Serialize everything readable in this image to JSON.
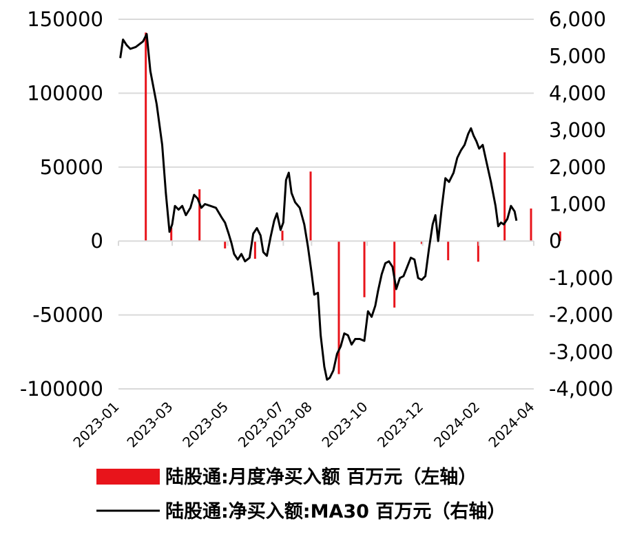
{
  "chart_data": {
    "type": "bar+line",
    "x_ticks": [
      "2023-01",
      "2023-03",
      "2023-05",
      "2023-07",
      "2023-08",
      "2023-10",
      "2023-12",
      "2024-02",
      "2024-04"
    ],
    "left_axis": {
      "ticks": [
        "150000",
        "100000",
        "50000",
        "0",
        "-50000",
        "-100000"
      ],
      "ylim": [
        -100000,
        150000
      ]
    },
    "right_axis": {
      "ticks": [
        "6,000",
        "5,000",
        "4,000",
        "3,000",
        "2,000",
        "1,000",
        "0",
        "-1,000",
        "-2,000",
        "-3,000",
        "-4,000"
      ],
      "ylim": [
        -4000,
        6000
      ]
    },
    "grid": true,
    "legend_position": "bottom",
    "colors": {
      "bars": "#e8141b",
      "line": "#000000",
      "grid": "#d9d9d9"
    },
    "series": [
      {
        "name": "陆股通:月度净买入额 百万元（左轴）",
        "axis": "left",
        "kind": "bar",
        "points": [
          {
            "x": "2023-01-31",
            "y": 141000
          },
          {
            "x": "2023-02-28",
            "y": 9000
          },
          {
            "x": "2023-03-31",
            "y": 35000
          },
          {
            "x": "2023-04-28",
            "y": -5000
          },
          {
            "x": "2023-05-31",
            "y": -12000
          },
          {
            "x": "2023-06-30",
            "y": 7000
          },
          {
            "x": "2023-07-31",
            "y": 47000
          },
          {
            "x": "2023-08-31",
            "y": -90000
          },
          {
            "x": "2023-09-28",
            "y": -38000
          },
          {
            "x": "2023-10-31",
            "y": -45000
          },
          {
            "x": "2023-11-30",
            "y": -2000
          },
          {
            "x": "2023-12-29",
            "y": -13000
          },
          {
            "x": "2024-01-31",
            "y": -14000
          },
          {
            "x": "2024-02-29",
            "y": 60000
          },
          {
            "x": "2024-03-29",
            "y": 22000
          },
          {
            "x": "2024-04-30",
            "y": 6500
          }
        ]
      },
      {
        "name": "陆股通:净买入额:MA30 百万元（右轴）",
        "axis": "right",
        "kind": "line",
        "points": [
          {
            "x": "2023-01-03",
            "y": 4950
          },
          {
            "x": "2023-01-06",
            "y": 5450
          },
          {
            "x": "2023-01-10",
            "y": 5300
          },
          {
            "x": "2023-01-14",
            "y": 5200
          },
          {
            "x": "2023-01-20",
            "y": 5250
          },
          {
            "x": "2023-01-28",
            "y": 5400
          },
          {
            "x": "2023-02-01",
            "y": 5600
          },
          {
            "x": "2023-02-05",
            "y": 4600
          },
          {
            "x": "2023-02-12",
            "y": 3700
          },
          {
            "x": "2023-02-18",
            "y": 2600
          },
          {
            "x": "2023-02-22",
            "y": 1300
          },
          {
            "x": "2023-02-26",
            "y": 250
          },
          {
            "x": "2023-03-01",
            "y": 450
          },
          {
            "x": "2023-03-04",
            "y": 950
          },
          {
            "x": "2023-03-08",
            "y": 850
          },
          {
            "x": "2023-03-12",
            "y": 950
          },
          {
            "x": "2023-03-16",
            "y": 700
          },
          {
            "x": "2023-03-21",
            "y": 900
          },
          {
            "x": "2023-03-25",
            "y": 1250
          },
          {
            "x": "2023-03-29",
            "y": 1150
          },
          {
            "x": "2023-04-02",
            "y": 900
          },
          {
            "x": "2023-04-06",
            "y": 1000
          },
          {
            "x": "2023-04-12",
            "y": 950
          },
          {
            "x": "2023-04-18",
            "y": 900
          },
          {
            "x": "2023-04-24",
            "y": 650
          },
          {
            "x": "2023-04-28",
            "y": 500
          },
          {
            "x": "2023-05-02",
            "y": 200
          },
          {
            "x": "2023-05-05",
            "y": -50
          },
          {
            "x": "2023-05-08",
            "y": -350
          },
          {
            "x": "2023-05-12",
            "y": -500
          },
          {
            "x": "2023-05-16",
            "y": -350
          },
          {
            "x": "2023-05-20",
            "y": -550
          },
          {
            "x": "2023-05-25",
            "y": -450
          },
          {
            "x": "2023-05-29",
            "y": 200
          },
          {
            "x": "2023-06-02",
            "y": 350
          },
          {
            "x": "2023-06-06",
            "y": 150
          },
          {
            "x": "2023-06-09",
            "y": -300
          },
          {
            "x": "2023-06-13",
            "y": -400
          },
          {
            "x": "2023-06-17",
            "y": 100
          },
          {
            "x": "2023-06-21",
            "y": 550
          },
          {
            "x": "2023-06-24",
            "y": 750
          },
          {
            "x": "2023-06-28",
            "y": 300
          },
          {
            "x": "2023-07-01",
            "y": 500
          },
          {
            "x": "2023-07-04",
            "y": 1650
          },
          {
            "x": "2023-07-07",
            "y": 1850
          },
          {
            "x": "2023-07-10",
            "y": 1300
          },
          {
            "x": "2023-07-14",
            "y": 1050
          },
          {
            "x": "2023-07-19",
            "y": 900
          },
          {
            "x": "2023-07-24",
            "y": 450
          },
          {
            "x": "2023-07-28",
            "y": -150
          },
          {
            "x": "2023-08-01",
            "y": -850
          },
          {
            "x": "2023-08-04",
            "y": -1450
          },
          {
            "x": "2023-08-08",
            "y": -1400
          },
          {
            "x": "2023-08-11",
            "y": -2550
          },
          {
            "x": "2023-08-15",
            "y": -3400
          },
          {
            "x": "2023-08-18",
            "y": -3750
          },
          {
            "x": "2023-08-21",
            "y": -3700
          },
          {
            "x": "2023-08-25",
            "y": -3500
          },
          {
            "x": "2023-08-29",
            "y": -3050
          },
          {
            "x": "2023-09-02",
            "y": -2850
          },
          {
            "x": "2023-09-06",
            "y": -2500
          },
          {
            "x": "2023-09-10",
            "y": -2550
          },
          {
            "x": "2023-09-14",
            "y": -2800
          },
          {
            "x": "2023-09-18",
            "y": -2650
          },
          {
            "x": "2023-09-23",
            "y": -2650
          },
          {
            "x": "2023-09-28",
            "y": -2700
          },
          {
            "x": "2023-10-02",
            "y": -1900
          },
          {
            "x": "2023-10-06",
            "y": -2050
          },
          {
            "x": "2023-10-10",
            "y": -1750
          },
          {
            "x": "2023-10-13",
            "y": -1350
          },
          {
            "x": "2023-10-17",
            "y": -900
          },
          {
            "x": "2023-10-21",
            "y": -600
          },
          {
            "x": "2023-10-25",
            "y": -550
          },
          {
            "x": "2023-10-29",
            "y": -700
          },
          {
            "x": "2023-11-02",
            "y": -1300
          },
          {
            "x": "2023-11-06",
            "y": -1000
          },
          {
            "x": "2023-11-10",
            "y": -950
          },
          {
            "x": "2023-11-14",
            "y": -700
          },
          {
            "x": "2023-11-18",
            "y": -450
          },
          {
            "x": "2023-11-22",
            "y": -500
          },
          {
            "x": "2023-11-26",
            "y": -1000
          },
          {
            "x": "2023-11-30",
            "y": -1050
          },
          {
            "x": "2023-12-04",
            "y": -950
          },
          {
            "x": "2023-12-08",
            "y": -200
          },
          {
            "x": "2023-12-12",
            "y": 450
          },
          {
            "x": "2023-12-15",
            "y": 700
          },
          {
            "x": "2023-12-18",
            "y": 0
          },
          {
            "x": "2023-12-22",
            "y": 900
          },
          {
            "x": "2023-12-26",
            "y": 1700
          },
          {
            "x": "2023-12-30",
            "y": 1600
          },
          {
            "x": "2024-01-04",
            "y": 1850
          },
          {
            "x": "2024-01-08",
            "y": 2250
          },
          {
            "x": "2024-01-12",
            "y": 2450
          },
          {
            "x": "2024-01-16",
            "y": 2600
          },
          {
            "x": "2024-01-20",
            "y": 2900
          },
          {
            "x": "2024-01-23",
            "y": 3050
          },
          {
            "x": "2024-01-26",
            "y": 2850
          },
          {
            "x": "2024-01-29",
            "y": 2700
          },
          {
            "x": "2024-02-01",
            "y": 2500
          },
          {
            "x": "2024-02-05",
            "y": 2600
          },
          {
            "x": "2024-02-09",
            "y": 2150
          },
          {
            "x": "2024-02-14",
            "y": 1600
          },
          {
            "x": "2024-02-19",
            "y": 950
          },
          {
            "x": "2024-02-22",
            "y": 400
          },
          {
            "x": "2024-02-25",
            "y": 500
          },
          {
            "x": "2024-02-28",
            "y": 450
          },
          {
            "x": "2024-03-03",
            "y": 600
          },
          {
            "x": "2024-03-07",
            "y": 950
          },
          {
            "x": "2024-03-11",
            "y": 800
          },
          {
            "x": "2024-03-13",
            "y": 550
          }
        ]
      }
    ]
  }
}
